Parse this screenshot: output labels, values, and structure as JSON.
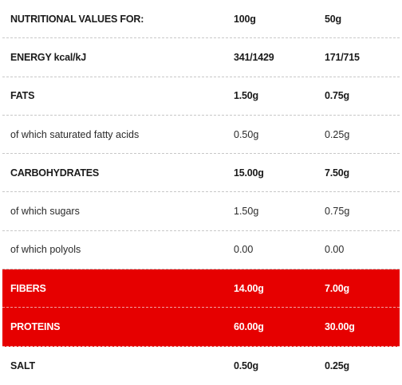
{
  "table": {
    "header": {
      "label": "NUTRITIONAL VALUES FOR:",
      "col_100": "100g",
      "col_50": "50g"
    },
    "rows": [
      {
        "label": "ENERGY kcal/kJ",
        "v100": "341/1429",
        "v50": "171/715",
        "bold": true,
        "highlight": false
      },
      {
        "label": "FATS",
        "v100": "1.50g",
        "v50": "0.75g",
        "bold": true,
        "highlight": false
      },
      {
        "label": "of which saturated fatty acids",
        "v100": "0.50g",
        "v50": "0.25g",
        "bold": false,
        "highlight": false
      },
      {
        "label": "CARBOHYDRATES",
        "v100": "15.00g",
        "v50": "7.50g",
        "bold": true,
        "highlight": false
      },
      {
        "label": "of which sugars",
        "v100": "1.50g",
        "v50": "0.75g",
        "bold": false,
        "highlight": false
      },
      {
        "label": "of which polyols",
        "v100": "0.00",
        "v50": "0.00",
        "bold": false,
        "highlight": false
      },
      {
        "label": "FIBERS",
        "v100": "14.00g",
        "v50": "7.00g",
        "bold": true,
        "highlight": true
      },
      {
        "label": "PROTEINS",
        "v100": "60.00g",
        "v50": "30.00g",
        "bold": true,
        "highlight": true
      },
      {
        "label": "SALT",
        "v100": "0.50g",
        "v50": "0.25g",
        "bold": true,
        "highlight": false
      }
    ]
  },
  "colors": {
    "highlight_background": "#e60000",
    "highlight_text": "#ffffff",
    "text": "#1a1a1a",
    "divider": "#c8c8c8"
  }
}
